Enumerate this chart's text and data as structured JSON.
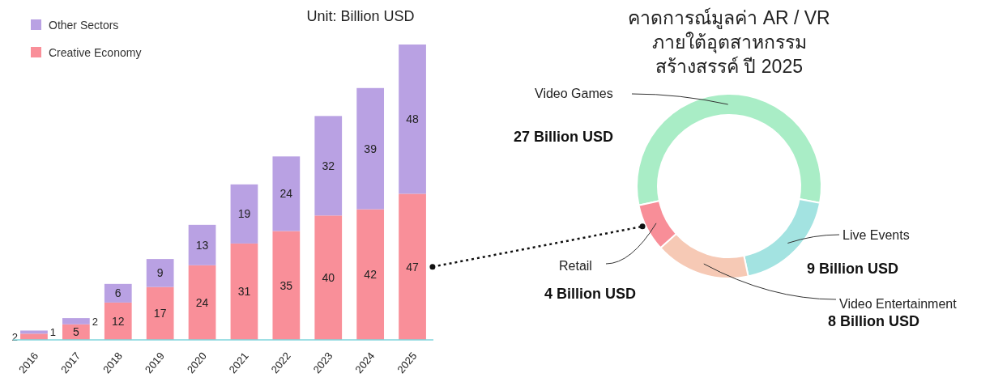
{
  "chart_data": [
    {
      "type": "bar",
      "stacked": true,
      "categories": [
        "2016",
        "2017",
        "2018",
        "2019",
        "2020",
        "2021",
        "2022",
        "2023",
        "2024",
        "2025"
      ],
      "series": [
        {
          "name": "Creative Economy",
          "color": "#f98f99",
          "values": [
            2,
            5,
            12,
            17,
            24,
            31,
            35,
            40,
            42,
            47
          ]
        },
        {
          "name": "Other Sectors",
          "color": "#b9a1e3",
          "values": [
            1,
            2,
            6,
            9,
            13,
            19,
            24,
            32,
            39,
            48
          ]
        }
      ],
      "data_labels": true,
      "legend": "top left",
      "annotations": [
        "Unit: Billion USD"
      ]
    },
    {
      "type": "donut",
      "title": "คาดการณ์มูลค่า AR / VR ภายใต้อุตสาหกรรม สร้างสรรค์ ปี 2025",
      "categories": [
        "Video Games",
        "Live Events",
        "Video Entertainment",
        "Retail"
      ],
      "values": [
        27,
        9,
        8,
        4
      ],
      "colors": [
        "#a9edc6",
        "#a3e3e1",
        "#f6c9b5",
        "#f88e98"
      ],
      "value_labels": [
        "27 Billion USD",
        "9 Billion USD",
        "8 Billion USD",
        "4 Billion USD"
      ]
    }
  ]
}
